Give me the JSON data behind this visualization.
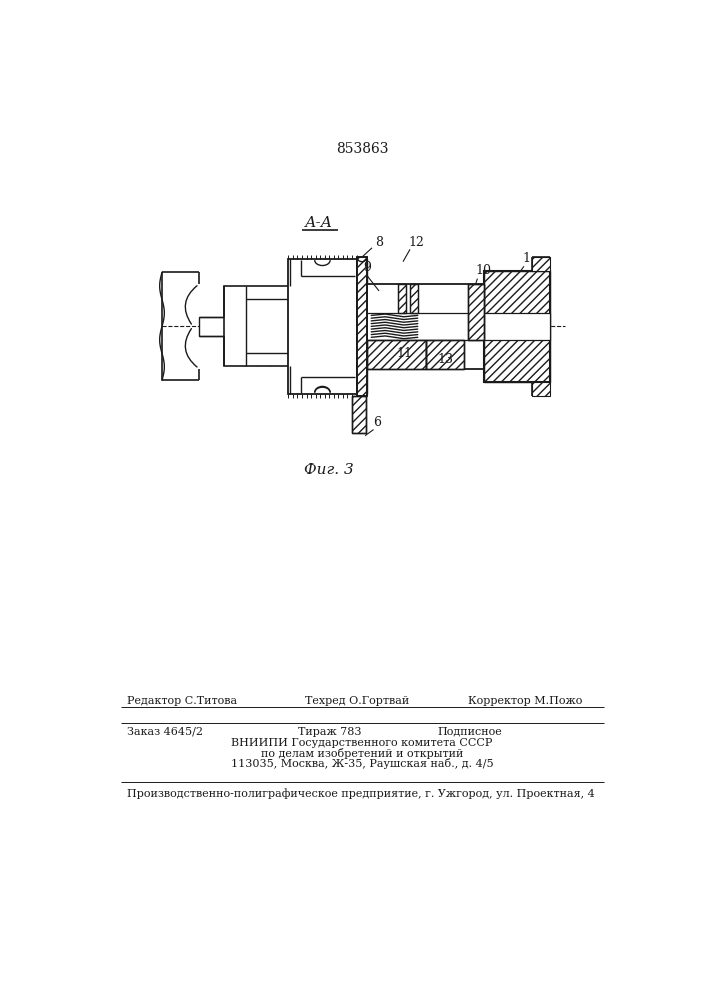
{
  "patent_number": "853863",
  "section_label": "А-А",
  "fig_label": "Фиг. 3",
  "editor_label": "Редактор С.Титова",
  "tehred_label": "Техред О.Гортвай",
  "corrector_label": "Корректор М.Пожо",
  "order_label": "Заказ 4645/2",
  "tirazh_label": "Тираж 783",
  "podpisnoe_label": "Подписное",
  "vniip_line1": "ВНИИПИ Государственного комитета СССР",
  "vniip_line2": "по делам изобретений и открытий",
  "vniip_line3": "113035, Москва, Ж-35, Раушская наб., д. 4/5",
  "print_line": "Производственно-полиграфическое предприятие, г. Ужгород, ул. Проектная, 4",
  "bg_color": "#ffffff",
  "line_color": "#1a1a1a"
}
